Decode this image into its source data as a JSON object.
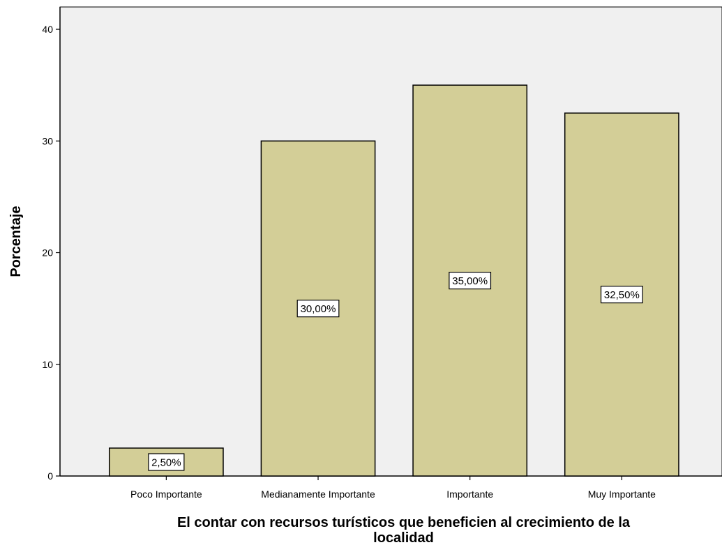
{
  "chart_data": {
    "type": "bar",
    "categories": [
      "Poco Importante",
      "Medianamente Importante",
      "Importante",
      "Muy Importante"
    ],
    "values": [
      2.5,
      30.0,
      35.0,
      32.5
    ],
    "data_labels": [
      "2,50%",
      "30,00%",
      "35,00%",
      "32,50%"
    ],
    "xlabel_lines": [
      "El contar con recursos turísticos que beneficien al crecimiento de la",
      "localidad"
    ],
    "ylabel": "Porcentaje",
    "ylim": [
      0,
      42
    ],
    "yticks": [
      0,
      10,
      20,
      30,
      40
    ],
    "grid": false,
    "colors": {
      "plot_bg": "#f0f0f0",
      "bar_fill": "#d3ce97",
      "bar_stroke": "#000000"
    }
  }
}
